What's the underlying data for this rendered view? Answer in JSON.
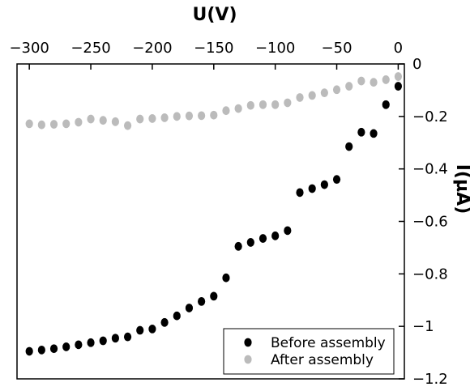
{
  "chart_data": {
    "type": "scatter",
    "title": "",
    "xlabel": "U(V)",
    "ylabel": "I(µA)",
    "xlim": [
      -310,
      5
    ],
    "ylim": [
      -1.2,
      0
    ],
    "x_ticks": [
      -300,
      -250,
      -200,
      -150,
      -100,
      -50,
      0
    ],
    "y_ticks": [
      0,
      -0.2,
      -0.4,
      -0.6,
      -0.8,
      -1,
      -1.2
    ],
    "x_axis_position": "top",
    "y_axis_position": "right",
    "grid": false,
    "legend_position": "bottom-right",
    "series": [
      {
        "name": "Before assembly",
        "color": "#000000",
        "x": [
          -300,
          -290,
          -280,
          -270,
          -260,
          -250,
          -240,
          -230,
          -220,
          -210,
          -200,
          -190,
          -180,
          -170,
          -160,
          -150,
          -140,
          -130,
          -120,
          -110,
          -100,
          -90,
          -80,
          -70,
          -60,
          -50,
          -40,
          -30,
          -20,
          -10,
          0
        ],
        "y": [
          -1.095,
          -1.09,
          -1.085,
          -1.078,
          -1.07,
          -1.062,
          -1.055,
          -1.045,
          -1.04,
          -1.015,
          -1.01,
          -0.985,
          -0.96,
          -0.93,
          -0.905,
          -0.885,
          -0.815,
          -0.695,
          -0.68,
          -0.665,
          -0.655,
          -0.635,
          -0.49,
          -0.475,
          -0.46,
          -0.44,
          -0.315,
          -0.26,
          -0.265,
          -0.155,
          -0.085
        ]
      },
      {
        "name": "After assembly",
        "color": "#bbbbbb",
        "x": [
          -300,
          -290,
          -280,
          -270,
          -260,
          -250,
          -240,
          -230,
          -220,
          -210,
          -200,
          -190,
          -180,
          -170,
          -160,
          -150,
          -140,
          -130,
          -120,
          -110,
          -100,
          -90,
          -80,
          -70,
          -60,
          -50,
          -40,
          -30,
          -20,
          -10,
          0
        ],
        "y": [
          -0.228,
          -0.232,
          -0.23,
          -0.228,
          -0.222,
          -0.21,
          -0.215,
          -0.22,
          -0.235,
          -0.21,
          -0.208,
          -0.205,
          -0.2,
          -0.198,
          -0.197,
          -0.195,
          -0.178,
          -0.17,
          -0.158,
          -0.155,
          -0.155,
          -0.148,
          -0.128,
          -0.12,
          -0.11,
          -0.098,
          -0.085,
          -0.065,
          -0.07,
          -0.06,
          -0.048
        ]
      }
    ]
  }
}
